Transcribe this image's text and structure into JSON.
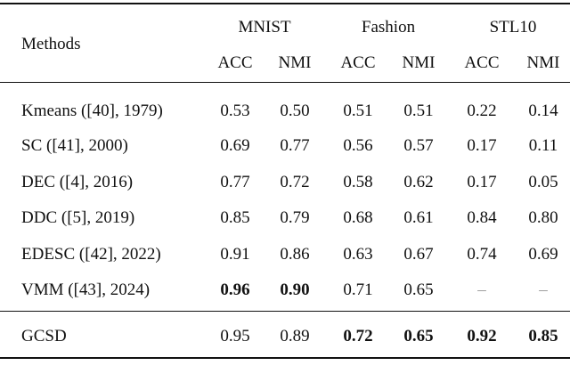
{
  "table": {
    "header": {
      "method": "Methods",
      "groups": [
        "MNIST",
        "Fashion",
        "STL10"
      ],
      "metrics": [
        "ACC",
        "NMI",
        "ACC",
        "NMI",
        "ACC",
        "NMI"
      ]
    },
    "rows": [
      [
        "Kmeans ([40], 1979)",
        "0.53",
        "0.50",
        "0.51",
        "0.51",
        "0.22",
        "0.14"
      ],
      [
        "SC ([41], 2000)",
        "0.69",
        "0.77",
        "0.56",
        "0.57",
        "0.17",
        "0.11"
      ],
      [
        "DEC ([4], 2016)",
        "0.77",
        "0.72",
        "0.58",
        "0.62",
        "0.17",
        "0.05"
      ],
      [
        "DDC ([5], 2019)",
        "0.85",
        "0.79",
        "0.68",
        "0.61",
        "0.84",
        "0.80"
      ],
      [
        "EDESC ([42], 2022)",
        "0.91",
        "0.86",
        "0.63",
        "0.67",
        "0.74",
        "0.69"
      ],
      [
        "VMM ([43], 2024)",
        "0.96",
        "0.90",
        "0.71",
        "0.65",
        "–",
        "–"
      ],
      [
        "GCSD",
        "0.95",
        "0.89",
        "0.72",
        "0.65",
        "0.92",
        "0.85"
      ]
    ]
  }
}
